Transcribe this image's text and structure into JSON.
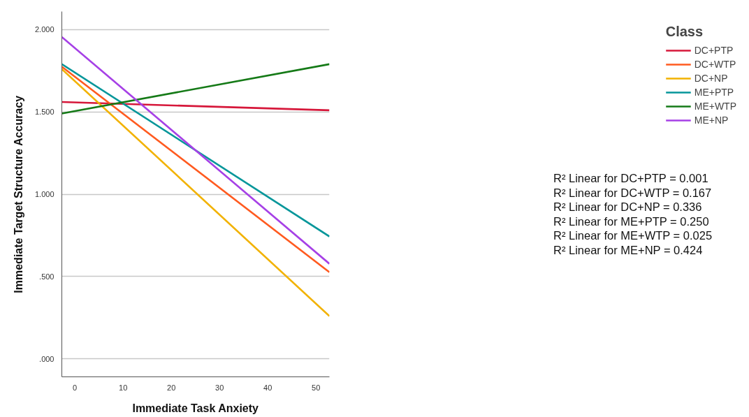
{
  "chart_data": {
    "type": "line",
    "xlabel": "Immediate Task Anxiety",
    "ylabel": "Immediate Target Structure Accuracy",
    "legend_title": "Class",
    "x": [
      -2.7,
      52.8
    ],
    "series": [
      {
        "name": "DC+PTP",
        "color": "#d6173a",
        "values": [
          1.56,
          1.51
        ]
      },
      {
        "name": "DC+WTP",
        "color": "#ff5a1f",
        "values": [
          1.775,
          0.526
        ]
      },
      {
        "name": "DC+NP",
        "color": "#f2b200",
        "values": [
          1.76,
          0.259
        ]
      },
      {
        "name": "ME+PTP",
        "color": "#05969a",
        "values": [
          1.79,
          0.743
        ]
      },
      {
        "name": "ME+WTP",
        "color": "#157a17",
        "values": [
          1.49,
          1.79
        ]
      },
      {
        "name": "ME+NP",
        "color": "#a640e6",
        "values": [
          1.955,
          0.577
        ]
      }
    ],
    "xlim": [
      -2.7,
      52.8
    ],
    "ylim": [
      -0.11,
      2.11
    ],
    "xticks": [
      0,
      10,
      20,
      30,
      40,
      50
    ],
    "yticks": [
      {
        "value": 0,
        "label": ".000"
      },
      {
        "value": 0.5,
        "label": ".500"
      },
      {
        "value": 1,
        "label": "1.000"
      },
      {
        "value": 1.5,
        "label": "1.500"
      },
      {
        "value": 2,
        "label": "2.000"
      }
    ],
    "grid": "y",
    "legend": "right",
    "marker": "none",
    "line_style": "solid",
    "annotations": [
      "R² Linear for DC+PTP = 0.001",
      "R² Linear for DC+WTP = 0.167",
      "R² Linear for DC+NP = 0.336",
      "R² Linear for ME+PTP = 0.250",
      "R² Linear for ME+WTP = 0.025",
      "R² Linear for ME+NP = 0.424"
    ]
  }
}
